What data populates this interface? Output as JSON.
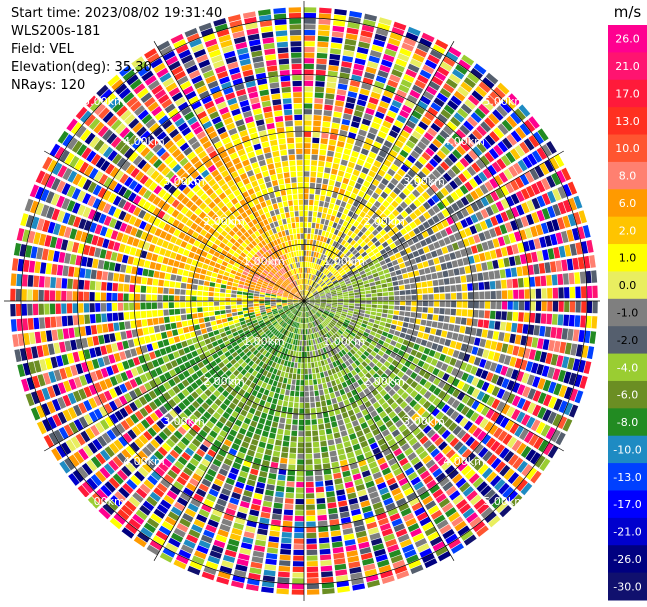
{
  "header": {
    "start_time": "Start time: 2023/08/02 19:31:40",
    "instrument": "WLS200s-181",
    "field": "Field: VEL",
    "elevation": "Elevation(deg): 35.30",
    "nrays": "NRays: 120"
  },
  "colorbar": {
    "unit": "m/s",
    "tick_labels": [
      "26.0",
      "21.0",
      "17.0",
      "13.0",
      "10.0",
      "8.0",
      "6.0",
      "2.0",
      "1.0",
      "0.0",
      "-1.0",
      "-2.0",
      "-4.0",
      "-6.0",
      "-8.0",
      "-10.0",
      "-13.0",
      "-17.0",
      "-21.0",
      "-26.0",
      "-30.0"
    ],
    "colors": [
      "#ff0090",
      "#ff1470",
      "#ff1a3a",
      "#ff3020",
      "#ff5530",
      "#ff8070",
      "#ff9a00",
      "#ffc400",
      "#ffff00",
      "#e9ee60",
      "#7f7f7f",
      "#555f6e",
      "#9acd32",
      "#6b8e23",
      "#228b22",
      "#1e8bc3",
      "#0040ff",
      "#0000ff",
      "#0000cd",
      "#000080",
      "#10106e"
    ]
  },
  "chart_data": {
    "type": "heatmap",
    "projection": "polar PPI",
    "field": "VEL",
    "unit": "m/s",
    "nrays": 120,
    "elevation_deg": 35.3,
    "range_rings_km": [
      1.0,
      2.0,
      3.0,
      4.0,
      5.0
    ],
    "ring_labels": [
      "1.00km",
      "2.00km",
      "3.00km",
      "4.00km",
      "5.00km"
    ],
    "azimuth_lines_deg": [
      0,
      30,
      60,
      90,
      120,
      150,
      180,
      210,
      240,
      270,
      300,
      330
    ],
    "max_range_km": 5.3,
    "dominant_values_by_sector": [
      {
        "sector": "north",
        "velocity_ms": 2.0
      },
      {
        "sector": "northwest",
        "velocity_ms": 6.0
      },
      {
        "sector": "west-near",
        "velocity_ms": 8.0
      },
      {
        "sector": "east",
        "velocity_ms": -2.0
      },
      {
        "sector": "south",
        "velocity_ms": -6.0
      },
      {
        "sector": "southeast",
        "velocity_ms": -4.0
      },
      {
        "sector": "far range",
        "velocity_ms": "noise"
      }
    ],
    "grid": true
  }
}
